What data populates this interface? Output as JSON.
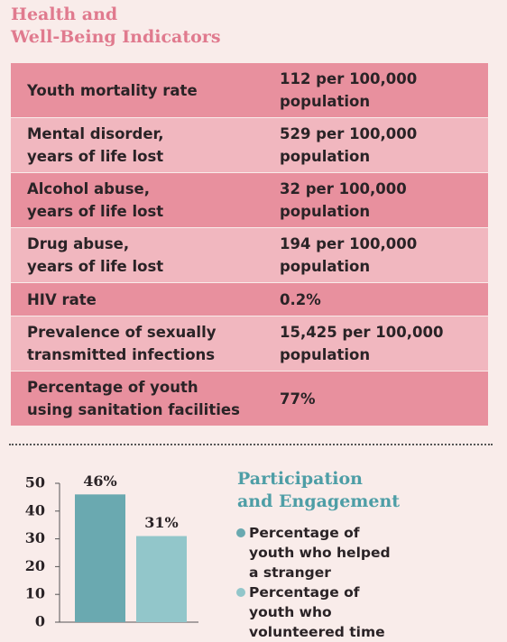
{
  "header": {
    "title": [
      "Health and",
      "Well-Being Indicators"
    ]
  },
  "table": {
    "rows": [
      [
        [
          "Youth mortality rate"
        ],
        [
          "112 per 100,000",
          "population"
        ]
      ],
      [
        [
          "Mental disorder,",
          "years of life lost"
        ],
        [
          "529 per 100,000",
          "population"
        ]
      ],
      [
        [
          "Alcohol abuse,",
          "years of life lost"
        ],
        [
          "32 per 100,000",
          "population"
        ]
      ],
      [
        [
          "Drug abuse,",
          "years of life lost"
        ],
        [
          "194 per 100,000",
          "population"
        ]
      ],
      [
        [
          "HIV rate"
        ],
        [
          "0.2%"
        ]
      ],
      [
        [
          "Prevalence of sexually",
          "transmitted infections"
        ],
        [
          "15,425 per 100,000",
          "population"
        ]
      ],
      [
        [
          "Percentage of youth",
          "using sanitation facilities"
        ],
        [
          "77%"
        ]
      ]
    ]
  },
  "chart_data": {
    "type": "bar",
    "title": [
      "Participation",
      "and Engagement"
    ],
    "categories": [
      null
    ],
    "series": [
      {
        "name": "Percentage of youth who helped a stranger",
        "color": "#6aa9b0",
        "values": [
          46
        ],
        "value_labels": [
          "46%"
        ]
      },
      {
        "name": "Percentage of youth who volunteered time",
        "color": "#92c6ca",
        "values": [
          31
        ],
        "value_labels": [
          "31%"
        ]
      }
    ],
    "ylim": [
      0,
      50
    ],
    "yticks": [
      0,
      10,
      20,
      30,
      40,
      50
    ]
  }
}
